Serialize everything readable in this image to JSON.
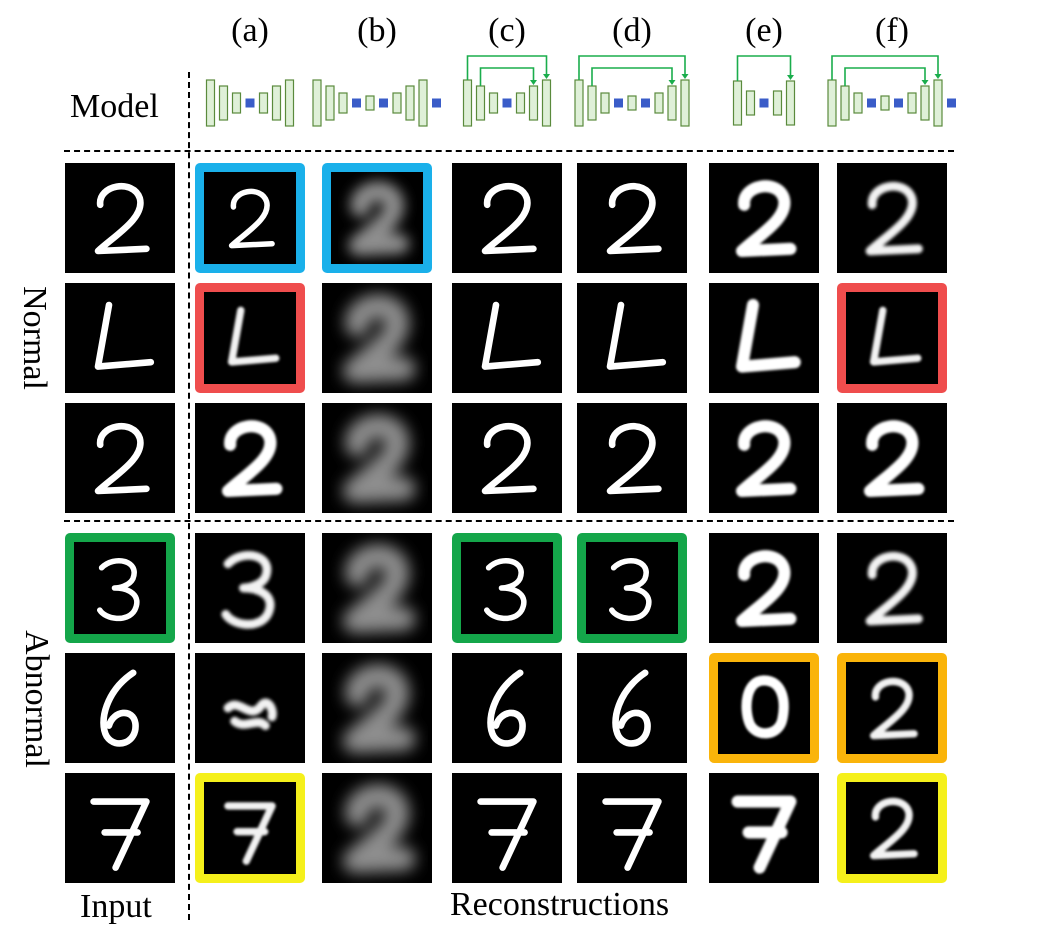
{
  "columns": [
    "(a)",
    "(b)",
    "(c)",
    "(d)",
    "(e)",
    "(f)"
  ],
  "labels": {
    "model": "Model",
    "input": "Input",
    "reconstructions": "Reconstructions",
    "normal": "Normal",
    "abnormal": "Abnormal"
  },
  "colors": {
    "blue": "#1ab0ea",
    "red": "#ef4d4d",
    "green": "#14a64a",
    "orange": "#fab40a",
    "yellow": "#f5f01b",
    "skip": "#1aad4c",
    "block_fill": "#dff0d8",
    "block_stroke": "#5a8a3c",
    "bottleneck": "#3a5cc8"
  },
  "models": [
    {
      "name": "a",
      "blocks": 3,
      "skips": 0
    },
    {
      "name": "b",
      "blocks": 3,
      "skips": 0
    },
    {
      "name": "c",
      "blocks": 3,
      "skips": 2
    },
    {
      "name": "d",
      "blocks": 3,
      "skips": 2
    },
    {
      "name": "e",
      "blocks": 2,
      "skips": 1
    },
    {
      "name": "f",
      "blocks": 3,
      "skips": 2
    }
  ],
  "rows": [
    {
      "group": "normal",
      "input": "2",
      "input_border": null,
      "cells": [
        {
          "digit": "2",
          "style": "sharp",
          "border": "blue"
        },
        {
          "digit": "2",
          "style": "blur",
          "border": "blue"
        },
        {
          "digit": "2",
          "style": "sharp",
          "border": null
        },
        {
          "digit": "2",
          "style": "sharp",
          "border": null
        },
        {
          "digit": "2",
          "style": "thick",
          "border": null
        },
        {
          "digit": "2",
          "style": "soft",
          "border": null
        }
      ]
    },
    {
      "group": "normal",
      "input": "L",
      "input_border": null,
      "cells": [
        {
          "digit": "L",
          "style": "soft",
          "border": "red"
        },
        {
          "digit": "2",
          "style": "blur",
          "border": null
        },
        {
          "digit": "L",
          "style": "sharp",
          "border": null
        },
        {
          "digit": "L",
          "style": "sharp",
          "border": null
        },
        {
          "digit": "L",
          "style": "thick",
          "border": null
        },
        {
          "digit": "L",
          "style": "soft",
          "border": "red"
        }
      ]
    },
    {
      "group": "normal",
      "input": "2",
      "input_border": null,
      "cells": [
        {
          "digit": "2",
          "style": "thick",
          "border": null
        },
        {
          "digit": "2",
          "style": "blur",
          "border": null
        },
        {
          "digit": "2",
          "style": "sharp",
          "border": null
        },
        {
          "digit": "2",
          "style": "sharp",
          "border": null
        },
        {
          "digit": "2",
          "style": "thick",
          "border": null
        },
        {
          "digit": "2",
          "style": "thick",
          "border": null
        }
      ]
    },
    {
      "group": "abnormal",
      "input": "3",
      "input_border": "green",
      "cells": [
        {
          "digit": "3",
          "style": "soft",
          "border": null
        },
        {
          "digit": "2",
          "style": "blur",
          "border": null
        },
        {
          "digit": "3",
          "style": "sharp",
          "border": "green"
        },
        {
          "digit": "3",
          "style": "sharp",
          "border": "green"
        },
        {
          "digit": "2",
          "style": "thick",
          "border": null
        },
        {
          "digit": "2",
          "style": "soft",
          "border": null
        }
      ]
    },
    {
      "group": "abnormal",
      "input": "6",
      "input_border": null,
      "cells": [
        {
          "digit": "~",
          "style": "soft",
          "border": null
        },
        {
          "digit": "2",
          "style": "blur",
          "border": null
        },
        {
          "digit": "6",
          "style": "sharp",
          "border": null
        },
        {
          "digit": "6",
          "style": "sharp",
          "border": null
        },
        {
          "digit": "0",
          "style": "thick",
          "border": "orange"
        },
        {
          "digit": "2",
          "style": "soft",
          "border": "orange"
        }
      ]
    },
    {
      "group": "abnormal",
      "input": "7",
      "input_border": null,
      "cells": [
        {
          "digit": "7",
          "style": "soft",
          "border": "yellow"
        },
        {
          "digit": "2",
          "style": "blur",
          "border": null
        },
        {
          "digit": "7",
          "style": "sharp",
          "border": null
        },
        {
          "digit": "7",
          "style": "sharp",
          "border": null
        },
        {
          "digit": "7",
          "style": "thick",
          "border": null
        },
        {
          "digit": "2",
          "style": "soft",
          "border": "yellow"
        }
      ]
    }
  ]
}
